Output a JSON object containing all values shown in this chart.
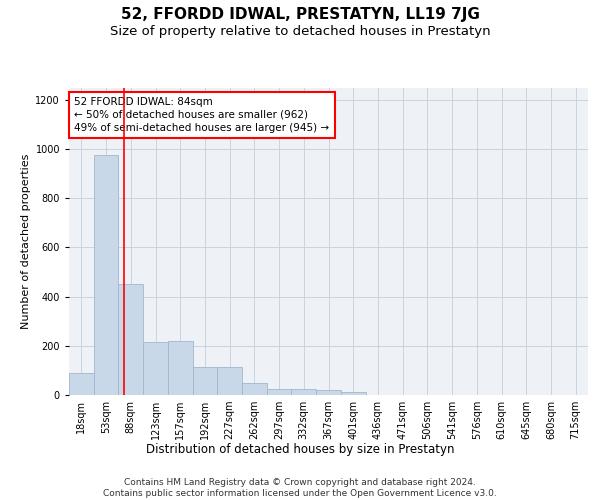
{
  "title": "52, FFORDD IDWAL, PRESTATYN, LL19 7JG",
  "subtitle": "Size of property relative to detached houses in Prestatyn",
  "xlabel": "Distribution of detached houses by size in Prestatyn",
  "ylabel": "Number of detached properties",
  "bar_labels": [
    "18sqm",
    "53sqm",
    "88sqm",
    "123sqm",
    "157sqm",
    "192sqm",
    "227sqm",
    "262sqm",
    "297sqm",
    "332sqm",
    "367sqm",
    "401sqm",
    "436sqm",
    "471sqm",
    "506sqm",
    "541sqm",
    "576sqm",
    "610sqm",
    "645sqm",
    "680sqm",
    "715sqm"
  ],
  "bar_values": [
    88,
    975,
    450,
    215,
    220,
    115,
    115,
    48,
    25,
    25,
    20,
    12,
    0,
    0,
    0,
    0,
    0,
    0,
    0,
    0,
    0
  ],
  "bar_color": "#c8d8e8",
  "bar_edgecolor": "#a0b8cc",
  "red_line_x": 1.72,
  "ylim": [
    0,
    1250
  ],
  "yticks": [
    0,
    200,
    400,
    600,
    800,
    1000,
    1200
  ],
  "annotation_title": "52 FFORDD IDWAL: 84sqm",
  "annotation_line1": "← 50% of detached houses are smaller (962)",
  "annotation_line2": "49% of semi-detached houses are larger (945) →",
  "footer1": "Contains HM Land Registry data © Crown copyright and database right 2024.",
  "footer2": "Contains public sector information licensed under the Open Government Licence v3.0.",
  "background_color": "#eef2f7",
  "grid_color": "#c5cedd",
  "title_fontsize": 11,
  "subtitle_fontsize": 9.5,
  "axis_label_fontsize": 8,
  "tick_fontsize": 7,
  "footer_fontsize": 6.5
}
